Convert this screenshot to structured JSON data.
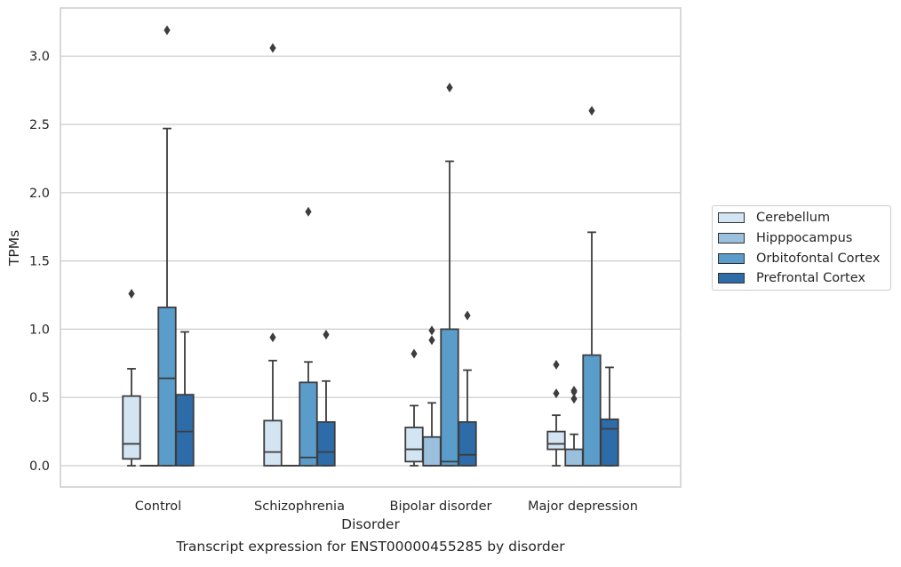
{
  "chart_data": {
    "type": "box",
    "xlabel": "Disorder",
    "ylabel": "TPMs",
    "caption": "Transcript expression for ENST00000455285 by disorder",
    "ylim": [
      -0.15,
      3.35
    ],
    "yticks": [
      0.0,
      0.5,
      1.0,
      1.5,
      2.0,
      2.5,
      3.0
    ],
    "ytick_labels": [
      "0.0",
      "0.5",
      "1.0",
      "1.5",
      "2.0",
      "2.5",
      "3.0"
    ],
    "grid": true,
    "legend_position": "right",
    "categories": [
      "Control",
      "Schizophrenia",
      "Bipolar disorder",
      "Major depression"
    ],
    "series": [
      {
        "name": "Cerebellum",
        "color": "#d3e4f3",
        "boxes": [
          {
            "whislo": 0.0,
            "q1": 0.05,
            "med": 0.16,
            "q3": 0.51,
            "whishi": 0.71,
            "fliers": [
              1.26
            ]
          },
          {
            "whislo": 0.0,
            "q1": 0.0,
            "med": 0.1,
            "q3": 0.33,
            "whishi": 0.77,
            "fliers": [
              0.94,
              3.06
            ]
          },
          {
            "whislo": 0.0,
            "q1": 0.03,
            "med": 0.12,
            "q3": 0.28,
            "whishi": 0.44,
            "fliers": [
              0.82
            ]
          },
          {
            "whislo": 0.0,
            "q1": 0.12,
            "med": 0.16,
            "q3": 0.25,
            "whishi": 0.37,
            "fliers": [
              0.53,
              0.74
            ]
          }
        ]
      },
      {
        "name": "Hipppocampus",
        "color": "#9ac0de",
        "boxes": [
          {
            "whislo": 0.0,
            "q1": 0.0,
            "med": 0.0,
            "q3": 0.0,
            "whishi": 0.0,
            "fliers": []
          },
          {
            "whislo": 0.0,
            "q1": 0.0,
            "med": 0.0,
            "q3": 0.0,
            "whishi": 0.0,
            "fliers": []
          },
          {
            "whislo": 0.0,
            "q1": 0.0,
            "med": 0.0,
            "q3": 0.21,
            "whishi": 0.46,
            "fliers": [
              0.92,
              0.99
            ]
          },
          {
            "whislo": 0.0,
            "q1": 0.0,
            "med": 0.0,
            "q3": 0.12,
            "whishi": 0.23,
            "fliers": [
              0.49,
              0.54,
              0.55
            ]
          }
        ]
      },
      {
        "name": "Orbitofontal Cortex",
        "color": "#5a9dcb",
        "boxes": [
          {
            "whislo": 0.0,
            "q1": 0.0,
            "med": 0.64,
            "q3": 1.16,
            "whishi": 2.47,
            "fliers": [
              3.19
            ]
          },
          {
            "whislo": 0.0,
            "q1": 0.0,
            "med": 0.06,
            "q3": 0.61,
            "whishi": 0.76,
            "fliers": [
              1.86
            ]
          },
          {
            "whislo": 0.0,
            "q1": 0.0,
            "med": 0.03,
            "q3": 1.0,
            "whishi": 2.23,
            "fliers": [
              2.77
            ]
          },
          {
            "whislo": 0.0,
            "q1": 0.0,
            "med": 0.0,
            "q3": 0.81,
            "whishi": 1.71,
            "fliers": [
              2.6
            ]
          }
        ]
      },
      {
        "name": "Prefrontal Cortex",
        "color": "#2d6ca9",
        "boxes": [
          {
            "whislo": 0.0,
            "q1": 0.0,
            "med": 0.25,
            "q3": 0.52,
            "whishi": 0.98,
            "fliers": []
          },
          {
            "whislo": 0.0,
            "q1": 0.0,
            "med": 0.1,
            "q3": 0.32,
            "whishi": 0.62,
            "fliers": [
              0.96
            ]
          },
          {
            "whislo": 0.0,
            "q1": 0.0,
            "med": 0.08,
            "q3": 0.32,
            "whishi": 0.7,
            "fliers": [
              1.1
            ]
          },
          {
            "whislo": 0.0,
            "q1": 0.0,
            "med": 0.27,
            "q3": 0.34,
            "whishi": 0.72,
            "fliers": []
          }
        ]
      }
    ]
  }
}
